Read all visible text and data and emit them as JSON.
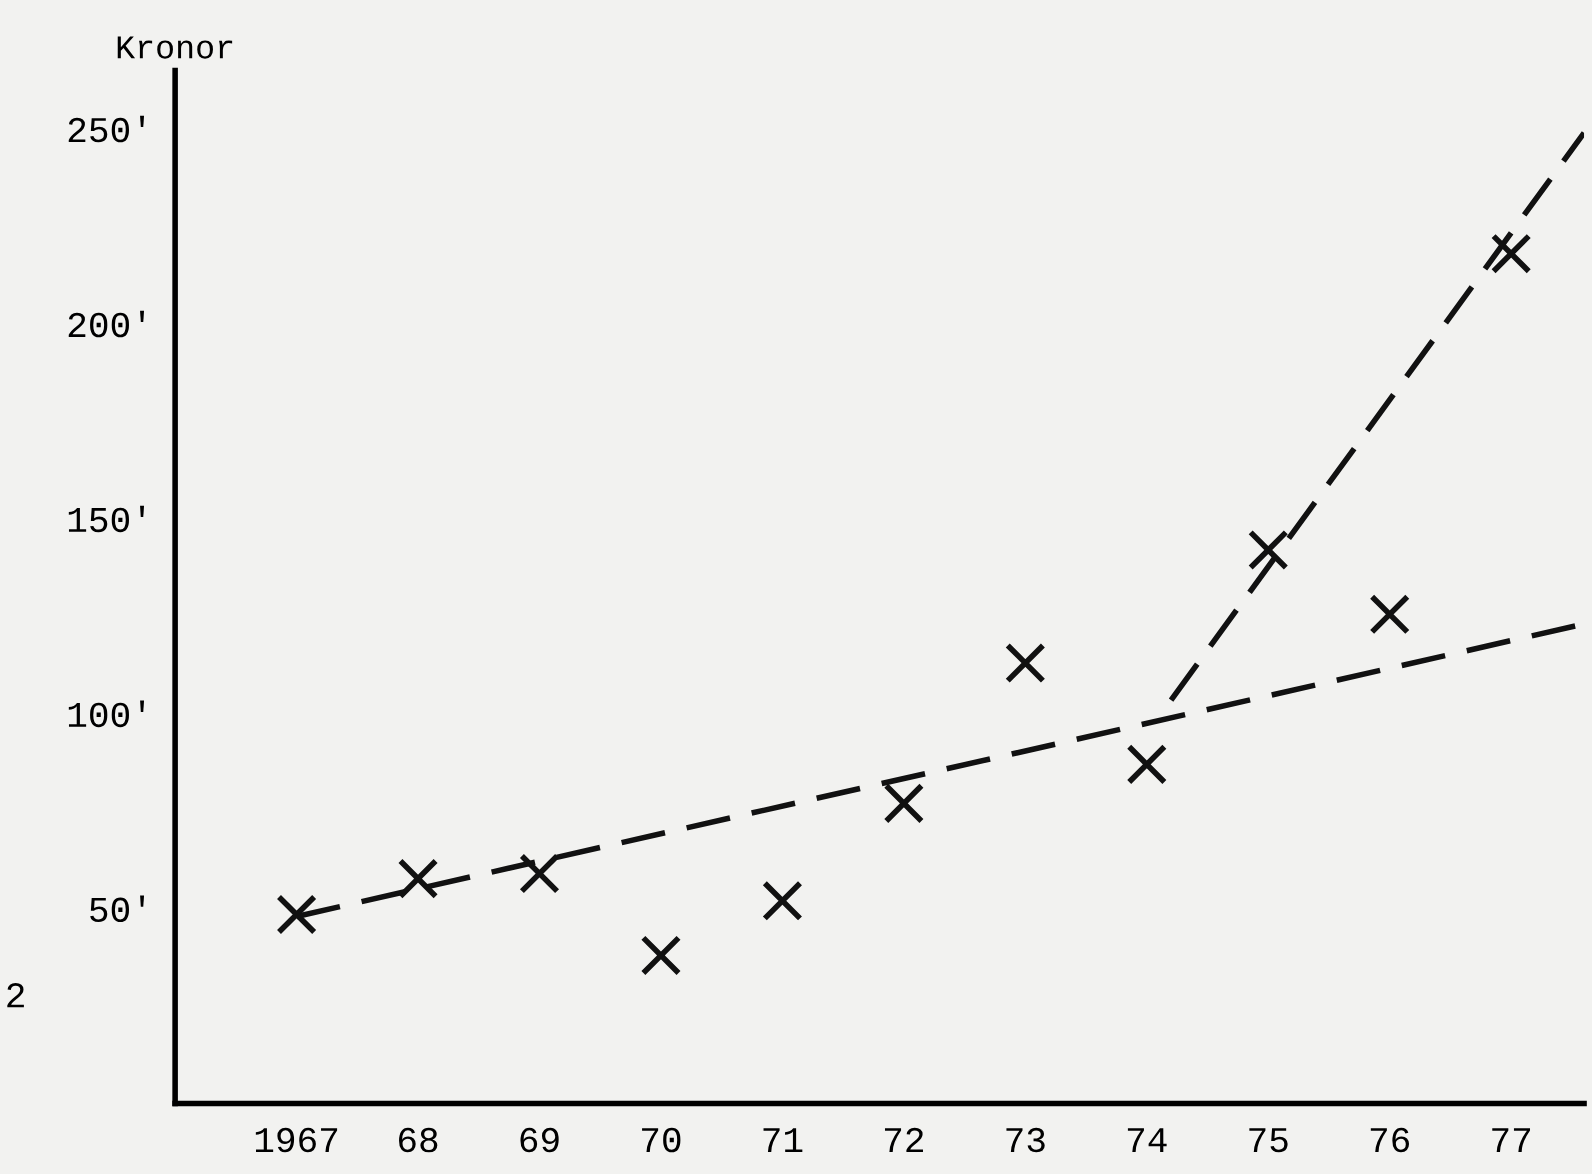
{
  "chart_data": {
    "type": "scatter",
    "ylabel": "Kronor",
    "x": [
      1967,
      1968,
      1969,
      1970,
      1971,
      1972,
      1973,
      1974,
      1975,
      1976,
      1977
    ],
    "series": [
      {
        "color": "#111111",
        "marker": "cross",
        "values": [
          48.5,
          57.7,
          59,
          38,
          52,
          77,
          113,
          87,
          142,
          125.5,
          218
        ]
      },
      {
        "type": "line",
        "color": "#111111",
        "line_style": "dashed",
        "x": [
          1967,
          1977.6
        ],
        "values": [
          48,
          123
        ]
      },
      {
        "type": "line",
        "color": "#111111",
        "line_style": "dashed",
        "x": [
          1974.2,
          1977.6
        ],
        "values": [
          103.5,
          249
        ]
      }
    ],
    "xlim": [
      1966,
      1977.6
    ],
    "ylim": [
      0,
      265
    ],
    "xticks": [
      1967,
      {
        "value": 1968,
        "label": "68"
      },
      {
        "value": 1969,
        "label": "69"
      },
      {
        "value": 1970,
        "label": "70"
      },
      {
        "value": 1971,
        "label": "71"
      },
      {
        "value": 1972,
        "label": "72"
      },
      {
        "value": 1973,
        "label": "73"
      },
      {
        "value": 1974,
        "label": "74"
      },
      {
        "value": 1975,
        "label": "75"
      },
      {
        "value": 1976,
        "label": "76"
      },
      {
        "value": 1977,
        "label": "77"
      }
    ],
    "yticks": [
      {
        "value": 50,
        "label": "50'"
      },
      {
        "value": 100,
        "label": "100'"
      },
      {
        "value": 150,
        "label": "150'"
      },
      {
        "value": 200,
        "label": "200'"
      },
      {
        "value": 250,
        "label": "250'"
      }
    ],
    "annotations": [
      "2"
    ],
    "grid": false,
    "legend": false
  }
}
